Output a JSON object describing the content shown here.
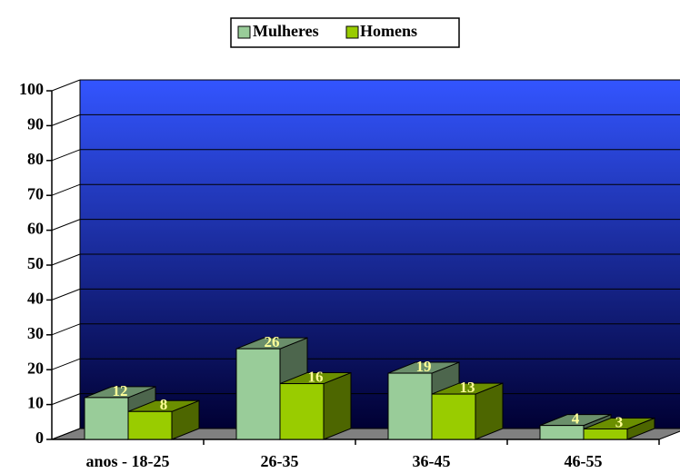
{
  "chart_data": {
    "type": "bar3d",
    "categories": [
      "anos - 18-25",
      "26-35",
      "36-45",
      "46-55"
    ],
    "series": [
      {
        "name": "Mulheres",
        "color": "#99cc99",
        "values": [
          12,
          26,
          19,
          4
        ]
      },
      {
        "name": "Homens",
        "color": "#99cc00",
        "values": [
          8,
          16,
          13,
          3
        ]
      }
    ],
    "ylim": [
      0,
      100
    ],
    "yticks": [
      0,
      10,
      20,
      30,
      40,
      50,
      60,
      70,
      80,
      90,
      100
    ],
    "grid": true,
    "legend": "top"
  }
}
